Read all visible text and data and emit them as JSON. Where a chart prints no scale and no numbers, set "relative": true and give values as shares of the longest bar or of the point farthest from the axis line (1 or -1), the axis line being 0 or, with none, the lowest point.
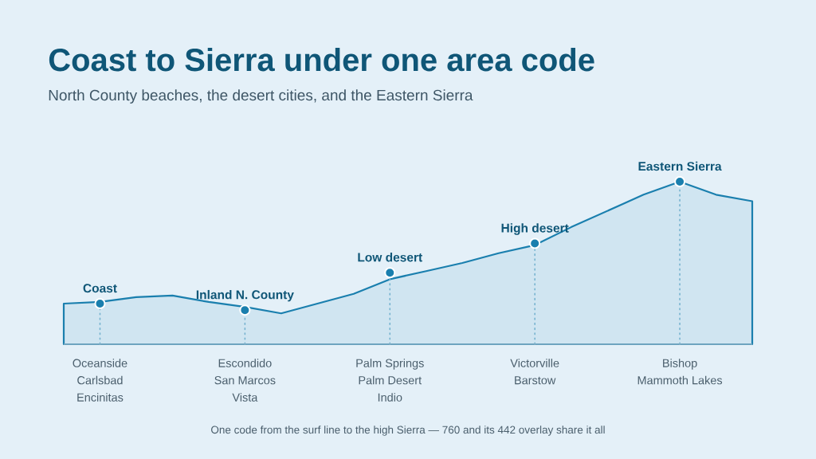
{
  "chart_data": {
    "type": "area",
    "title": "Coast to Sierra under one area code",
    "subtitle": "North County beaches, the desert cities, and the Eastern Sierra",
    "relative": true,
    "categories": [
      null,
      "Oceanside\nCarlsbad\nEncinitas",
      null,
      null,
      null,
      "Escondido\nSan Marcos\nVista",
      null,
      null,
      null,
      "Palm Springs\nPalm Desert\nIndio",
      null,
      null,
      null,
      "Victorville\nBarstow",
      null,
      null,
      null,
      "Bishop\nMammoth Lakes",
      null,
      null
    ],
    "series": [
      {
        "color": "#1a7fae",
        "values": [
          0.25,
          0.26,
          0.29,
          0.3,
          0.26,
          0.23,
          0.19,
          0.25,
          0.31,
          0.4,
          0.45,
          0.5,
          0.56,
          0.61,
          0.72,
          0.82,
          0.92,
          1,
          0.92,
          0.88
        ]
      },
      {
        "type": "lollipop",
        "color": "#1a7fae",
        "marker": "circle",
        "line_style": "dotted",
        "values": [
          null,
          0.25,
          null,
          null,
          null,
          0.21,
          null,
          null,
          null,
          0.44,
          null,
          null,
          null,
          0.62,
          null,
          null,
          null,
          1,
          null,
          null
        ]
      }
    ],
    "annotations": [
      {
        "text": "Coast",
        "x": "Oceanside\nCarlsbad\nEncinitas",
        "y": 0.25
      },
      {
        "text": "Inland N. County",
        "x": "Escondido\nSan Marcos\nVista",
        "y": 0.21
      },
      {
        "text": "Low desert",
        "x": "Palm Springs\nPalm Desert\nIndio",
        "y": 0.44
      },
      {
        "text": "High desert",
        "x": "Victorville\nBarstow",
        "y": 0.62
      },
      {
        "text": "Eastern Sierra",
        "x": "Bishop\nMammoth Lakes",
        "y": 1
      },
      "One code from the surf line to the high Sierra — 760 and its 442 overlay share it all"
    ]
  }
}
